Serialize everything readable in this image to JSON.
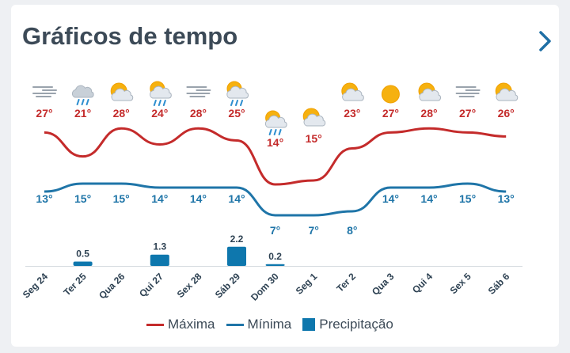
{
  "title": "Gráficos de tempo",
  "colors": {
    "max": "#c42b2b",
    "min": "#1f75a8",
    "precip": "#0e77ad"
  },
  "days": [
    {
      "label": "Seg 24",
      "icon": "fog-icon",
      "max": 27,
      "min": 13,
      "precip": null
    },
    {
      "label": "Ter 25",
      "icon": "cloud-rain-icon",
      "max": 21,
      "min": 15,
      "precip": 0.5
    },
    {
      "label": "Qua 26",
      "icon": "sun-cloud-icon",
      "max": 28,
      "min": 15,
      "precip": null
    },
    {
      "label": "Qui 27",
      "icon": "sun-cloud-rain-icon",
      "max": 24,
      "min": 14,
      "precip": 1.3
    },
    {
      "label": "Sex 28",
      "icon": "fog-icon",
      "max": 28,
      "min": 14,
      "precip": null
    },
    {
      "label": "Sáb 29",
      "icon": "sun-cloud-rain-icon",
      "max": 25,
      "min": 14,
      "precip": 2.2
    },
    {
      "label": "Dom 30",
      "icon": "sun-cloud-rain-icon",
      "max": 14,
      "min": 7,
      "precip": 0.2
    },
    {
      "label": "Seg 1",
      "icon": "sun-cloud-icon",
      "max": 15,
      "min": 7,
      "precip": null
    },
    {
      "label": "Ter 2",
      "icon": "sun-cloud-icon",
      "max": 23,
      "min": 8,
      "precip": null
    },
    {
      "label": "Qua 3",
      "icon": "sun-icon",
      "max": 27,
      "min": 14,
      "precip": null
    },
    {
      "label": "Qui 4",
      "icon": "sun-cloud-icon",
      "max": 28,
      "min": 14,
      "precip": null
    },
    {
      "label": "Sex 5",
      "icon": "fog-icon",
      "max": 27,
      "min": 15,
      "precip": null
    },
    {
      "label": "Sáb 6",
      "icon": "sun-cloud-icon",
      "max": 26,
      "min": 13,
      "precip": null
    }
  ],
  "chart_data": {
    "type": "line",
    "categories": [
      "Seg 24",
      "Ter 25",
      "Qua 26",
      "Qui 27",
      "Sex 28",
      "Sáb 29",
      "Dom 30",
      "Seg 1",
      "Ter 2",
      "Qua 3",
      "Qui 4",
      "Sex 5",
      "Sáb 6"
    ],
    "series": [
      {
        "name": "Máxima",
        "type": "line",
        "values": [
          27,
          21,
          28,
          24,
          28,
          25,
          14,
          15,
          23,
          27,
          28,
          27,
          26
        ]
      },
      {
        "name": "Mínima",
        "type": "line",
        "values": [
          13,
          15,
          15,
          14,
          14,
          14,
          7,
          7,
          8,
          14,
          14,
          15,
          13
        ]
      },
      {
        "name": "Precipitação",
        "type": "bar",
        "unit": "mm",
        "values": [
          null,
          0.5,
          null,
          1.3,
          null,
          2.2,
          0.2,
          null,
          null,
          null,
          null,
          null,
          null
        ]
      }
    ],
    "legend": [
      "Máxima",
      "Mínima",
      "Precipitação"
    ],
    "legend_position": "bottom",
    "grid": false
  }
}
